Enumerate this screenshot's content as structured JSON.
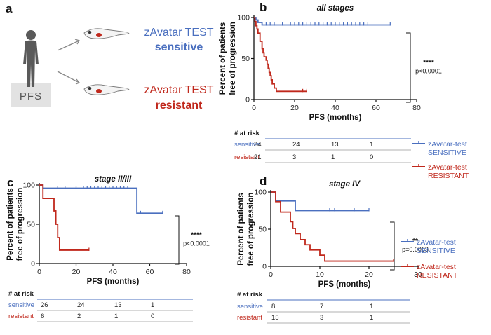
{
  "colors": {
    "sensitive": "#4a6fbf",
    "resistant": "#c0281c",
    "axis": "#111111"
  },
  "panel_a": {
    "letter": "a",
    "pfs_label": "PFS",
    "sensitive_line1": "zAvatar TEST",
    "sensitive_line2": "sensitive",
    "resistant_line1": "zAvatar TEST",
    "resistant_line2": "resistant"
  },
  "chart_data": [
    {
      "id": "b",
      "letter": "b",
      "type": "line",
      "title": "all stages",
      "xlabel": "PFS (months)",
      "ylabel": [
        "Percent of patients",
        "free of progression"
      ],
      "xlim": [
        0,
        80
      ],
      "ylim": [
        0,
        100
      ],
      "xticks": [
        0,
        20,
        40,
        60,
        80
      ],
      "yticks": [
        0,
        50,
        100
      ],
      "series": [
        {
          "name": "zAvatar-test SENSITIVE",
          "color": "#4a6fbf",
          "steps": [
            [
              0,
              100
            ],
            [
              1,
              97
            ],
            [
              2,
              94
            ],
            [
              4,
              91
            ],
            [
              67,
              91
            ]
          ],
          "censor": [
            6,
            8,
            10,
            14,
            18,
            20,
            22,
            24,
            26,
            28,
            30,
            32,
            34,
            36,
            38,
            40,
            42,
            44,
            46,
            48,
            50,
            52,
            54,
            56,
            67
          ]
        },
        {
          "name": "zAvatar-test RESISTANT",
          "color": "#c0281c",
          "steps": [
            [
              0,
              100
            ],
            [
              0.5,
              95
            ],
            [
              1,
              90
            ],
            [
              1.5,
              86
            ],
            [
              2,
              81
            ],
            [
              3,
              71
            ],
            [
              4,
              62
            ],
            [
              4.5,
              57
            ],
            [
              5,
              52
            ],
            [
              6,
              48
            ],
            [
              6.5,
              43
            ],
            [
              7,
              38
            ],
            [
              7.5,
              33
            ],
            [
              8,
              29
            ],
            [
              8.5,
              24
            ],
            [
              9,
              19
            ],
            [
              10,
              14
            ],
            [
              11,
              10
            ],
            [
              26,
              10
            ]
          ],
          "censor": [
            24,
            26
          ]
        }
      ],
      "significance": {
        "stars": "****",
        "p": "p<0.0001"
      },
      "risk_table": {
        "header": "# at risk",
        "sensitive": [
          "34",
          "24",
          "13",
          "1"
        ],
        "resistant": [
          "21",
          "3",
          "1",
          "0"
        ]
      },
      "legend": {
        "sensitive": [
          "zAvatar-test",
          "SENSITIVE"
        ],
        "resistant": [
          "zAvatar-test",
          "RESISTANT"
        ]
      }
    },
    {
      "id": "c",
      "letter": "c",
      "type": "line",
      "title": "stage II/III",
      "xlabel": "PFS (months)",
      "ylabel": [
        "Percent of patients",
        "free of progression"
      ],
      "xlim": [
        0,
        80
      ],
      "ylim": [
        0,
        100
      ],
      "xticks": [
        0,
        20,
        40,
        60,
        80
      ],
      "yticks": [
        0,
        50,
        100
      ],
      "series": [
        {
          "name": "zAvatar-test SENSITIVE",
          "color": "#4a6fbf",
          "steps": [
            [
              0,
              100
            ],
            [
              2,
              96
            ],
            [
              53,
              96
            ],
            [
              53,
              64
            ],
            [
              67,
              64
            ]
          ],
          "censor": [
            10,
            14,
            20,
            24,
            26,
            28,
            30,
            32,
            34,
            36,
            38,
            40,
            42,
            44,
            46,
            48,
            55,
            67
          ]
        },
        {
          "name": "zAvatar-test RESISTANT",
          "color": "#c0281c",
          "steps": [
            [
              0,
              100
            ],
            [
              2,
              83
            ],
            [
              7,
              83
            ],
            [
              8,
              67
            ],
            [
              9,
              50
            ],
            [
              10,
              33
            ],
            [
              11,
              17
            ],
            [
              27,
              17
            ]
          ],
          "censor": [
            27
          ]
        }
      ],
      "significance": {
        "stars": "****",
        "p": "p<0.0001"
      },
      "risk_table": {
        "header": "# at risk",
        "sensitive": [
          "26",
          "24",
          "13",
          "1"
        ],
        "resistant": [
          "6",
          "2",
          "1",
          "0"
        ]
      }
    },
    {
      "id": "d",
      "letter": "d",
      "type": "line",
      "title": "stage IV",
      "xlabel": "PFS (months)",
      "ylabel": [
        "Percent of patients",
        "free of progression"
      ],
      "xlim": [
        0,
        30
      ],
      "ylim": [
        0,
        100
      ],
      "xticks": [
        0,
        10,
        20,
        30
      ],
      "yticks": [
        0,
        50,
        100
      ],
      "series": [
        {
          "name": "zAvatar-test SENSITIVE",
          "color": "#4a6fbf",
          "steps": [
            [
              0,
              100
            ],
            [
              1,
              88
            ],
            [
              5,
              88
            ],
            [
              5,
              75
            ],
            [
              20,
              75
            ]
          ],
          "censor": [
            12,
            13,
            17,
            20
          ]
        },
        {
          "name": "zAvatar-test RESISTANT",
          "color": "#c0281c",
          "steps": [
            [
              0,
              100
            ],
            [
              1,
              87
            ],
            [
              2,
              73
            ],
            [
              4,
              60
            ],
            [
              4.5,
              51
            ],
            [
              5,
              44
            ],
            [
              6,
              36
            ],
            [
              7,
              29
            ],
            [
              8,
              22
            ],
            [
              10,
              15
            ],
            [
              11,
              7
            ],
            [
              25,
              7
            ]
          ],
          "censor": [
            25
          ]
        }
      ],
      "significance": {
        "stars": "**",
        "p": "p=0.0063"
      },
      "risk_table": {
        "header": "# at risk",
        "sensitive": [
          "8",
          "7",
          "1"
        ],
        "resistant": [
          "15",
          "3",
          "1"
        ]
      },
      "legend": {
        "sensitive": [
          "zAvatar-test",
          "SENSITIVE"
        ],
        "resistant": [
          "zAvatar-test",
          "RESISTANT"
        ]
      }
    }
  ]
}
